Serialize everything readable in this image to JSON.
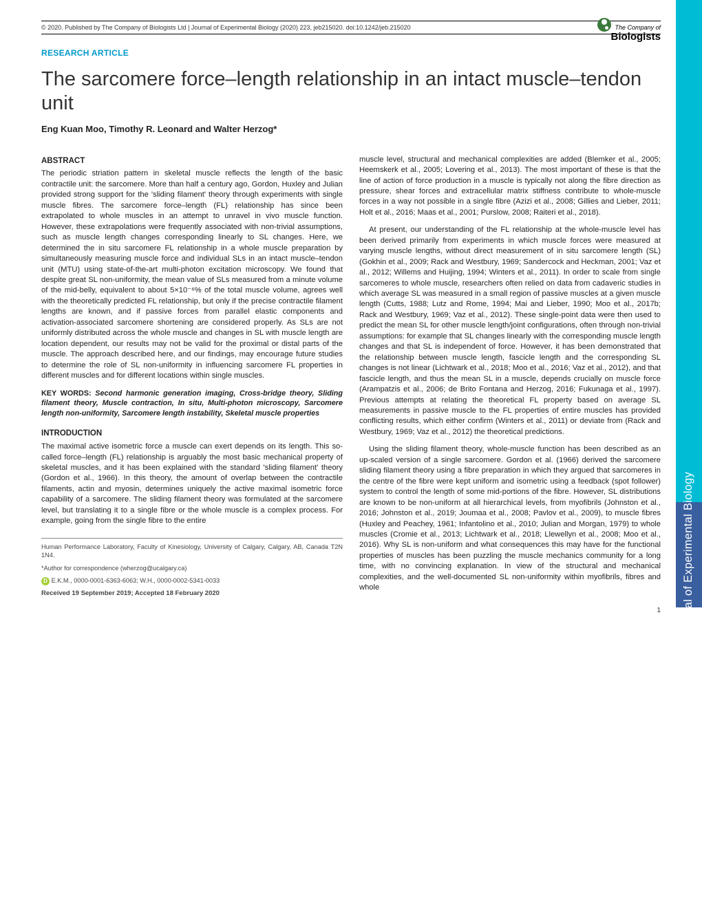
{
  "header": {
    "copyright": "© 2020. Published by The Company of Biologists Ltd | Journal of Experimental Biology (2020) 223, jeb215020. doi:10.1242/jeb.215020",
    "logo_company": "The Company of",
    "logo_main": "Biologists"
  },
  "article": {
    "type": "RESEARCH ARTICLE",
    "title": "The sarcomere force–length relationship in an intact muscle–tendon unit",
    "authors": "Eng Kuan Moo, Timothy R. Leonard and Walter Herzog*"
  },
  "abstract": {
    "heading": "ABSTRACT",
    "text": "The periodic striation pattern in skeletal muscle reflects the length of the basic contractile unit: the sarcomere. More than half a century ago, Gordon, Huxley and Julian provided strong support for the 'sliding filament' theory through experiments with single muscle fibres. The sarcomere force–length (FL) relationship has since been extrapolated to whole muscles in an attempt to unravel in vivo muscle function. However, these extrapolations were frequently associated with non-trivial assumptions, such as muscle length changes corresponding linearly to SL changes. Here, we determined the in situ sarcomere FL relationship in a whole muscle preparation by simultaneously measuring muscle force and individual SLs in an intact muscle–tendon unit (MTU) using state-of-the-art multi-photon excitation microscopy. We found that despite great SL non-uniformity, the mean value of SLs measured from a minute volume of the mid-belly, equivalent to about 5×10⁻⁶% of the total muscle volume, agrees well with the theoretically predicted FL relationship, but only if the precise contractile filament lengths are known, and if passive forces from parallel elastic components and activation-associated sarcomere shortening are considered properly. As SLs are not uniformly distributed across the whole muscle and changes in SL with muscle length are location dependent, our results may not be valid for the proximal or distal parts of the muscle. The approach described here, and our findings, may encourage future studies to determine the role of SL non-uniformity in influencing sarcomere FL properties in different muscles and for different locations within single muscles."
  },
  "keywords": {
    "label": "KEY WORDS:",
    "text": "Second harmonic generation imaging, Cross-bridge theory, Sliding filament theory, Muscle contraction, In situ, Multi-photon microscopy, Sarcomere length non-uniformity, Sarcomere length instability, Skeletal muscle properties"
  },
  "introduction": {
    "heading": "INTRODUCTION",
    "para1": "The maximal active isometric force a muscle can exert depends on its length. This so-called force–length (FL) relationship is arguably the most basic mechanical property of skeletal muscles, and it has been explained with the standard 'sliding filament' theory (Gordon et al., 1966). In this theory, the amount of overlap between the contractile filaments, actin and myosin, determines uniquely the active maximal isometric force capability of a sarcomere. The sliding filament theory was formulated at the sarcomere level, but translating it to a single fibre or the whole muscle is a complex process. For example, going from the single fibre to the entire"
  },
  "col2": {
    "para1": "muscle level, structural and mechanical complexities are added (Blemker et al., 2005; Heemskerk et al., 2005; Lovering et al., 2013). The most important of these is that the line of action of force production in a muscle is typically not along the fibre direction as pressure, shear forces and extracellular matrix stiffness contribute to whole-muscle forces in a way not possible in a single fibre (Azizi et al., 2008; Gillies and Lieber, 2011; Holt et al., 2016; Maas et al., 2001; Purslow, 2008; Raiteri et al., 2018).",
    "para2": "At present, our understanding of the FL relationship at the whole-muscle level has been derived primarily from experiments in which muscle forces were measured at varying muscle lengths, without direct measurement of in situ sarcomere length (SL) (Gokhin et al., 2009; Rack and Westbury, 1969; Sandercock and Heckman, 2001; Vaz et al., 2012; Willems and Huijing, 1994; Winters et al., 2011). In order to scale from single sarcomeres to whole muscle, researchers often relied on data from cadaveric studies in which average SL was measured in a small region of passive muscles at a given muscle length (Cutts, 1988; Lutz and Rome, 1994; Mai and Lieber, 1990; Moo et al., 2017b; Rack and Westbury, 1969; Vaz et al., 2012). These single-point data were then used to predict the mean SL for other muscle length/joint configurations, often through non-trivial assumptions: for example that SL changes linearly with the corresponding muscle length changes and that SL is independent of force. However, it has been demonstrated that the relationship between muscle length, fascicle length and the corresponding SL changes is not linear (Lichtwark et al., 2018; Moo et al., 2016; Vaz et al., 2012), and that fascicle length, and thus the mean SL in a muscle, depends crucially on muscle force (Arampatzis et al., 2006; de Brito Fontana and Herzog, 2016; Fukunaga et al., 1997). Previous attempts at relating the theoretical FL property based on average SL measurements in passive muscle to the FL properties of entire muscles has provided conflicting results, which either confirm (Winters et al., 2011) or deviate from (Rack and Westbury, 1969; Vaz et al., 2012) the theoretical predictions.",
    "para3": "Using the sliding filament theory, whole-muscle function has been described as an up-scaled version of a single sarcomere. Gordon et al. (1966) derived the sarcomere sliding filament theory using a fibre preparation in which they argued that sarcomeres in the centre of the fibre were kept uniform and isometric using a feedback (spot follower) system to control the length of some mid-portions of the fibre. However, SL distributions are known to be non-uniform at all hierarchical levels, from myofibrils (Johnston et al., 2016; Johnston et al., 2019; Joumaa et al., 2008; Pavlov et al., 2009), to muscle fibres (Huxley and Peachey, 1961; Infantolino et al., 2010; Julian and Morgan, 1979) to whole muscles (Cromie et al., 2013; Lichtwark et al., 2018; Llewellyn et al., 2008; Moo et al., 2016). Why SL is non-uniform and what consequences this may have for the functional properties of muscles has been puzzling the muscle mechanics community for a long time, with no convincing explanation. In view of the structural and mechanical complexities, and the well-documented SL non-uniformity within myofibrils, fibres and whole"
  },
  "affiliation": {
    "text": "Human Performance Laboratory, Faculty of Kinesiology, University of Calgary, Calgary, AB, Canada T2N 1N4.",
    "correspondence": "*Author for correspondence (wherzog@ucalgary.ca)",
    "orcid": "E.K.M., 0000-0001-6363-6063; W.H., 0000-0002-5341-0033",
    "received": "Received 19 September 2019; Accepted 18 February 2020"
  },
  "sidebar": {
    "journal": "Journal of Experimental Biology"
  },
  "page_number": "1",
  "colors": {
    "accent": "#0099cc",
    "tab_cyan": "#00bcd4",
    "tab_blue": "#3a5f9e",
    "orcid_green": "#a6ce39",
    "logo_green": "#3a7a3a"
  }
}
